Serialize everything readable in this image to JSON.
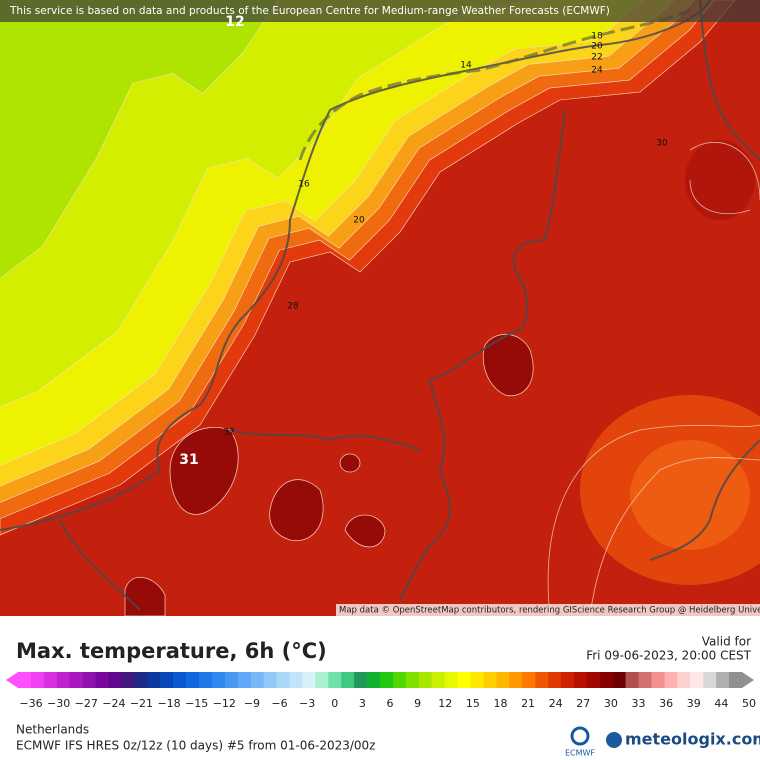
{
  "header": {
    "attribution": "This service is based on data and products of the European Centre for Medium-range Weather Forecasts (ECMWF)"
  },
  "map": {
    "credit": "Map data © OpenStreetMap contributors, rendering GIScience Research Group @ Heidelberg University",
    "contour_labels": [
      {
        "text": "12"
      },
      {
        "text": "14"
      },
      {
        "text": "18"
      },
      {
        "text": "20"
      },
      {
        "text": "22"
      },
      {
        "text": "24"
      },
      {
        "text": "16"
      },
      {
        "text": "20"
      },
      {
        "text": "28"
      },
      {
        "text": "30"
      },
      {
        "text": "32"
      },
      {
        "text": "31"
      }
    ]
  },
  "footer": {
    "title": "Max. temperature, 6h (°C)",
    "valid_label": "Valid for",
    "valid_time": "Fri 09-06-2023, 20:00 CEST",
    "region": "Netherlands",
    "model": "ECMWF IFS HRES 0z/12z (10 days) #5 from  01-06-2023/00z",
    "ecmwf_logo": "ECMWF",
    "brand": "meteologix.com"
  },
  "legend": {
    "labels": [
      "−36",
      "−30",
      "−27",
      "−24",
      "−21",
      "−18",
      "−15",
      "−12",
      "−9",
      "−6",
      "−3",
      "0",
      "3",
      "6",
      "9",
      "12",
      "15",
      "18",
      "21",
      "24",
      "27",
      "30",
      "33",
      "36",
      "39",
      "44",
      "50"
    ],
    "colors": [
      "#ff50ff",
      "#f040f0",
      "#d830e0",
      "#c020d0",
      "#a818c0",
      "#9010b0",
      "#7808a0",
      "#600890",
      "#401880",
      "#202888",
      "#0838a0",
      "#0848b8",
      "#0858d0",
      "#1068e0",
      "#2078e8",
      "#3088f0",
      "#4898f0",
      "#60a8f8",
      "#78b8f8",
      "#90c8f8",
      "#a8d8f8",
      "#c0e4f8",
      "#d8f0f8",
      "#a8f0d0",
      "#70e0a8",
      "#40c880",
      "#209858",
      "#10b030",
      "#20c810",
      "#50d800",
      "#80e000",
      "#a8e800",
      "#c8f000",
      "#e8f800",
      "#ffff00",
      "#ffe800",
      "#ffd000",
      "#ffb800",
      "#ff9800",
      "#ff7800",
      "#f05800",
      "#e03800",
      "#d02000",
      "#b81000",
      "#a00800",
      "#880000",
      "#700000",
      "#b05050",
      "#d07070",
      "#f09090",
      "#ffb0b0",
      "#ffd0d0",
      "#ffe8e8",
      "#d8d8d8",
      "#b0b0b0",
      "#909090"
    ]
  }
}
